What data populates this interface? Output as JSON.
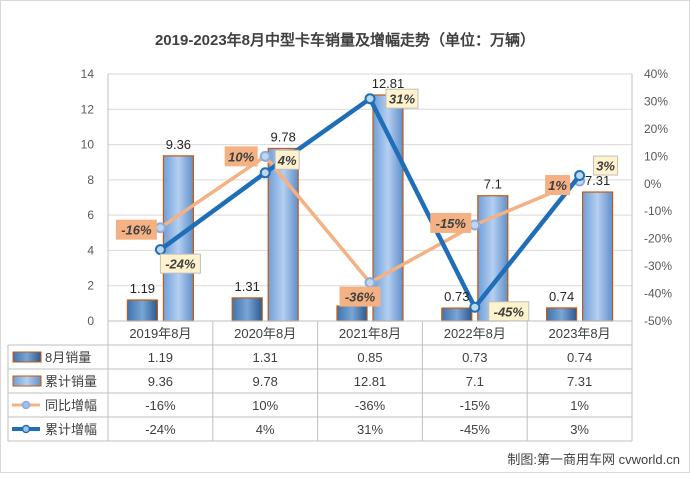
{
  "chart_data": {
    "type": "bar",
    "title": "2019-2023年8月中型卡车销量及增幅走势（单位：万辆）",
    "categories": [
      "2019年8月",
      "2020年8月",
      "2021年8月",
      "2022年8月",
      "2023年8月"
    ],
    "y_left": {
      "range": [
        0,
        14
      ],
      "ticks": [
        "0",
        "2",
        "4",
        "6",
        "8",
        "10",
        "12",
        "14"
      ]
    },
    "y_right": {
      "range": [
        -50,
        40
      ],
      "ticks": [
        "-50%",
        "-40%",
        "-30%",
        "-20%",
        "-10%",
        "0%",
        "10%",
        "20%",
        "30%",
        "40%"
      ]
    },
    "series": [
      {
        "name": "8月销量",
        "type": "bar",
        "axis": "left",
        "values": [
          1.19,
          1.31,
          0.85,
          0.73,
          0.74
        ],
        "labels": [
          "1.19",
          "1.31",
          "0.85",
          "0.73",
          "0.74"
        ],
        "color": "#2e5f97"
      },
      {
        "name": "累计销量",
        "type": "bar",
        "axis": "left",
        "values": [
          9.36,
          9.78,
          12.81,
          7.1,
          7.31
        ],
        "labels": [
          "9.36",
          "9.78",
          "12.81",
          "7.1",
          "7.31"
        ],
        "color": "#7ea9dc"
      },
      {
        "name": "同比增幅",
        "type": "line",
        "axis": "right",
        "values": [
          -16,
          10,
          -36,
          -15,
          1
        ],
        "labels": [
          "-16%",
          "10%",
          "-36%",
          "-15%",
          "1%"
        ],
        "color": "#f4b183"
      },
      {
        "name": "累计增幅",
        "type": "line",
        "axis": "right",
        "values": [
          -24,
          4,
          31,
          -45,
          3
        ],
        "labels": [
          "-24%",
          "4%",
          "31%",
          "-45%",
          "3%"
        ],
        "color": "#1f6fb8"
      }
    ],
    "grid": true,
    "legend": "data-table-below"
  },
  "source_text": "制图:第一商用车网 cvworld.cn"
}
